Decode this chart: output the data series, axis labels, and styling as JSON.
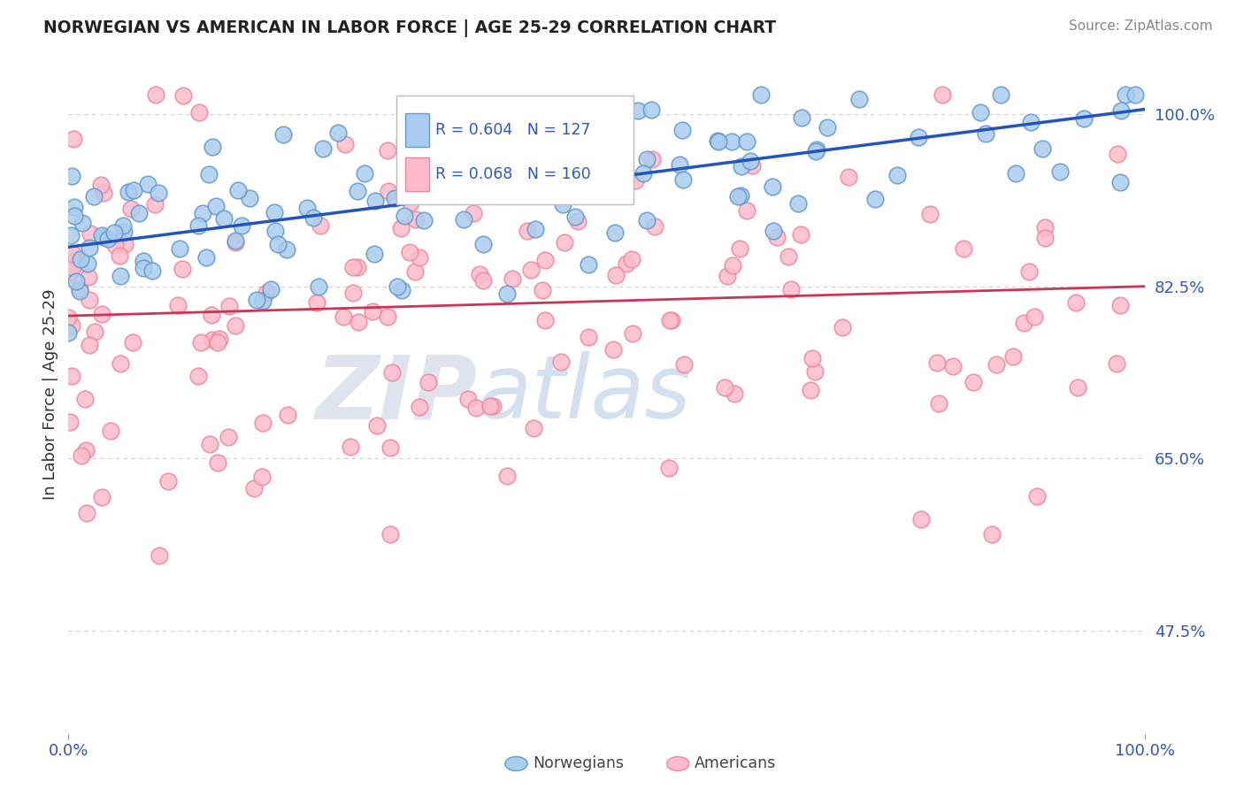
{
  "title": "NORWEGIAN VS AMERICAN IN LABOR FORCE | AGE 25-29 CORRELATION CHART",
  "source_text": "Source: ZipAtlas.com",
  "ylabel": "In Labor Force | Age 25-29",
  "xlim": [
    0.0,
    1.0
  ],
  "ylim": [
    0.37,
    1.06
  ],
  "ytick_show": [
    0.475,
    0.65,
    0.825,
    1.0
  ],
  "ytick_labels": {
    "0.475": "47.5%",
    "0.65": "65.0%",
    "0.825": "82.5%",
    "1.0": "100.0%"
  },
  "grid_color": "#d0d0d0",
  "background_color": "#ffffff",
  "norwegian_face_color": "#aaccee",
  "norwegian_edge_color": "#6699cc",
  "american_face_color": "#ffbbcc",
  "american_edge_color": "#ee8899",
  "norwegian_line_color": "#2255bb",
  "american_line_color": "#cc3355",
  "R_norwegian": 0.604,
  "N_norwegian": 127,
  "R_american": 0.068,
  "N_american": 160,
  "legend_label_norwegian": "Norwegians",
  "legend_label_american": "Americans",
  "watermark_zip": "ZIP",
  "watermark_atlas": "atlas",
  "norwegian_line_x": [
    0.0,
    1.0
  ],
  "norwegian_line_y": [
    0.865,
    1.005
  ],
  "american_line_x": [
    0.0,
    1.0
  ],
  "american_line_y": [
    0.795,
    0.825
  ],
  "title_color": "#222222",
  "source_color": "#888888",
  "tick_color": "#3355bb",
  "ylabel_color": "#333333",
  "legend_box_color": "#ffffff",
  "legend_box_edge": "#bbbbbb"
}
